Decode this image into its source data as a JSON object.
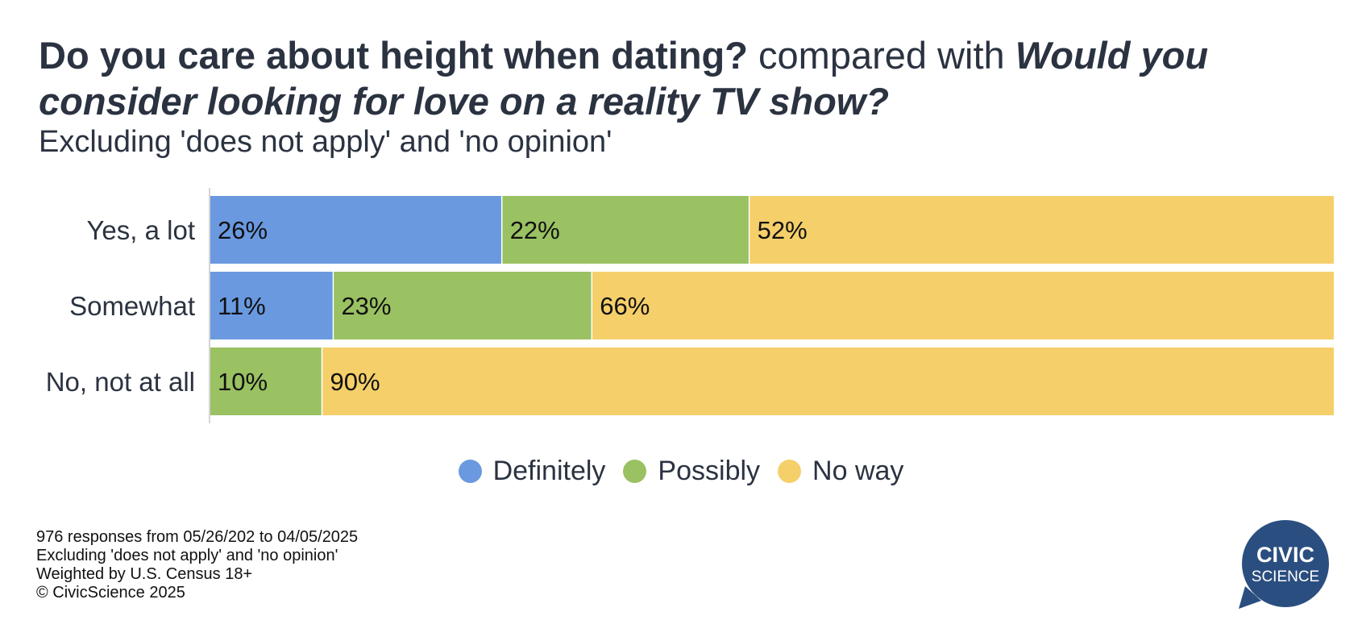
{
  "title": {
    "part1": "Do you care about height when dating?",
    "part2": " compared with ",
    "part3": "Would you consider looking for love on a reality TV show?"
  },
  "subtitle": "Excluding 'does not apply' and 'no opinion'",
  "chart_data": {
    "type": "bar",
    "orientation": "horizontal",
    "stacked": true,
    "categories": [
      "Yes, a lot",
      "Somewhat",
      "No, not at all"
    ],
    "series": [
      {
        "name": "Definitely",
        "color": "#6a99e0",
        "values": [
          26,
          11,
          0
        ]
      },
      {
        "name": "Possibly",
        "color": "#9ac162",
        "values": [
          22,
          23,
          10
        ]
      },
      {
        "name": "No way",
        "color": "#f5cf6a",
        "values": [
          52,
          66,
          90
        ]
      }
    ],
    "value_suffix": "%",
    "xlim": [
      0,
      100
    ],
    "grid": false,
    "legend_position": "bottom-center"
  },
  "footer": {
    "lines": [
      "976 responses from 05/26/202 to 04/05/2025",
      "Excluding 'does not apply' and 'no opinion'",
      "Weighted by U.S. Census 18+",
      "© CivicScience 2025"
    ]
  },
  "logo": {
    "line1": "CIVIC",
    "line2": "SCIENCE",
    "color": "#2a4e7f"
  }
}
